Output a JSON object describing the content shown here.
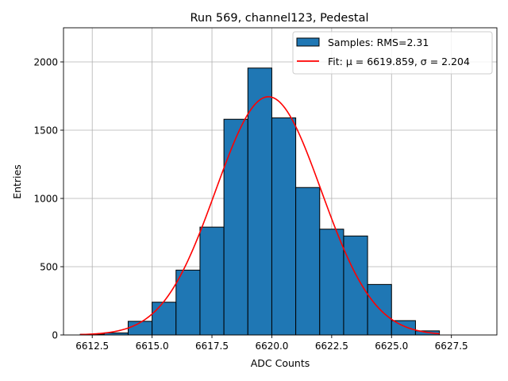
{
  "chart_data": {
    "type": "bar",
    "title": "Run 569, channel123, Pedestal",
    "xlabel": "ADC Counts",
    "ylabel": "Entries",
    "xlim": [
      6611.3,
      6629.4
    ],
    "ylim": [
      0,
      2250
    ],
    "grid": true,
    "legend_position": "top-right",
    "xticks": [
      6612.5,
      6615.0,
      6617.5,
      6620.0,
      6622.5,
      6625.0,
      6627.5
    ],
    "xtick_labels": [
      "6612.5",
      "6615.0",
      "6617.5",
      "6620.0",
      "6622.5",
      "6625.0",
      "6627.5"
    ],
    "yticks": [
      0,
      500,
      1000,
      1500,
      2000
    ],
    "ytick_labels": [
      "0",
      "500",
      "1000",
      "1500",
      "2000"
    ],
    "bins": [
      {
        "x0": 6612,
        "x1": 6613,
        "value": 5
      },
      {
        "x0": 6613,
        "x1": 6614,
        "value": 15
      },
      {
        "x0": 6614,
        "x1": 6615,
        "value": 100
      },
      {
        "x0": 6615,
        "x1": 6616,
        "value": 240
      },
      {
        "x0": 6616,
        "x1": 6617,
        "value": 475
      },
      {
        "x0": 6617,
        "x1": 6618,
        "value": 790
      },
      {
        "x0": 6618,
        "x1": 6619,
        "value": 1580
      },
      {
        "x0": 6619,
        "x1": 6620,
        "value": 1955
      },
      {
        "x0": 6620,
        "x1": 6621,
        "value": 1590
      },
      {
        "x0": 6621,
        "x1": 6622,
        "value": 1080
      },
      {
        "x0": 6622,
        "x1": 6623,
        "value": 775
      },
      {
        "x0": 6623,
        "x1": 6624,
        "value": 725
      },
      {
        "x0": 6624,
        "x1": 6625,
        "value": 370
      },
      {
        "x0": 6625,
        "x1": 6626,
        "value": 105
      },
      {
        "x0": 6626,
        "x1": 6627,
        "value": 30
      },
      {
        "x0": 6627,
        "x1": 6628,
        "value": 0
      }
    ],
    "fit": {
      "mu": 6619.859,
      "sigma": 2.204,
      "amplitude": 1745,
      "x_range": [
        6612,
        6627
      ]
    },
    "series": [
      {
        "name": "Samples: RMS=2.31",
        "kind": "histogram",
        "color": "#1f77b4",
        "edge_color": "#000000"
      },
      {
        "name": "Fit: μ = 6619.859, σ = 2.204",
        "kind": "line",
        "color": "#ff0000"
      }
    ]
  }
}
